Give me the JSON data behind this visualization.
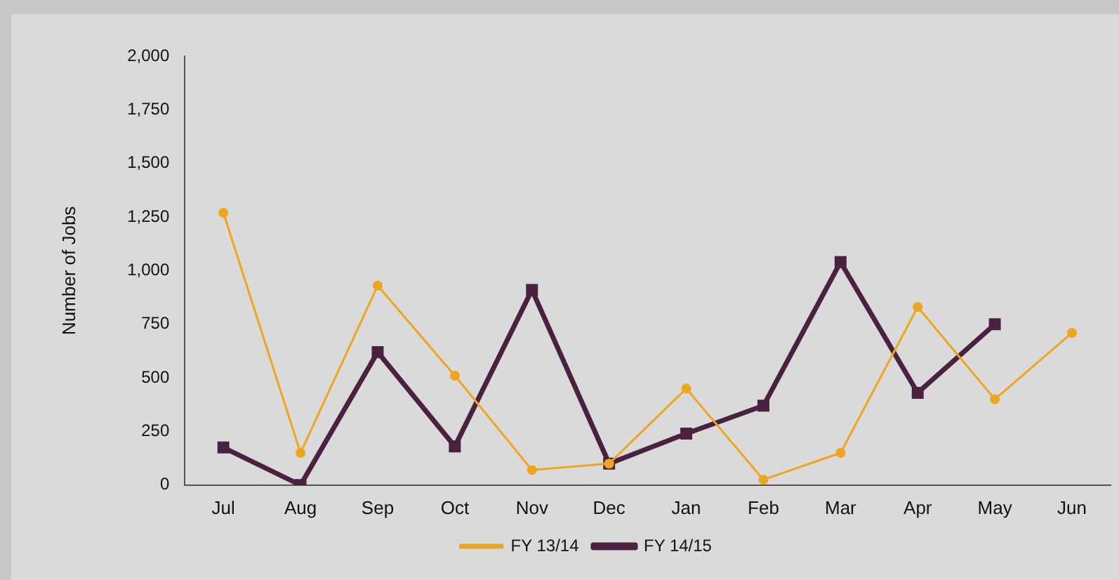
{
  "chart_data": {
    "type": "line",
    "ylabel": "Number of Jobs",
    "categories": [
      "Jul",
      "Aug",
      "Sep",
      "Oct",
      "Nov",
      "Dec",
      "Jan",
      "Feb",
      "Mar",
      "Apr",
      "May",
      "Jun"
    ],
    "series": [
      {
        "name": "FY 13/14",
        "color": "#eea520",
        "marker": "circle",
        "values": [
          1270,
          150,
          930,
          510,
          70,
          100,
          450,
          25,
          150,
          830,
          400,
          710
        ]
      },
      {
        "name": "FY 14/15",
        "color": "#4b2141",
        "marker": "square",
        "values": [
          175,
          0,
          620,
          180,
          910,
          100,
          240,
          370,
          1040,
          430,
          750,
          null
        ]
      }
    ],
    "ylim": [
      0,
      2000
    ],
    "yticks": [
      {
        "value": 0,
        "label": "0"
      },
      {
        "value": 250,
        "label": "250"
      },
      {
        "value": 500,
        "label": "500"
      },
      {
        "value": 750,
        "label": "750"
      },
      {
        "value": 1000,
        "label": "1,000"
      },
      {
        "value": 1250,
        "label": "1,250"
      },
      {
        "value": 1500,
        "label": "1,500"
      },
      {
        "value": 1750,
        "label": "1,750"
      },
      {
        "value": 2000,
        "label": "2,000"
      }
    ],
    "grid": false,
    "legend": "bottom",
    "line_style": "solid"
  }
}
